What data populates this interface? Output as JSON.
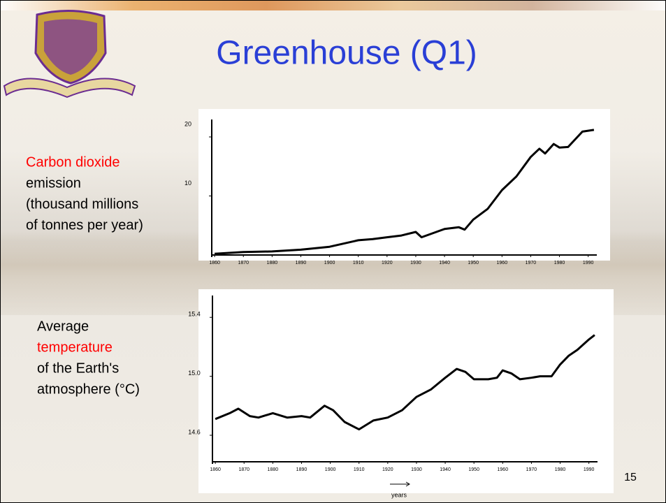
{
  "title": "Greenhouse (Q1)",
  "page_number": "15",
  "chart_data": [
    {
      "type": "line",
      "ylabel_lines": [
        "Carbon dioxide",
        "emission",
        "(thousand millions",
        "of tonnes per year)"
      ],
      "ylabel_colors": [
        "#ff0000",
        "#000000",
        "#000000",
        "#000000"
      ],
      "x": [
        1860,
        1870,
        1880,
        1890,
        1900,
        1910,
        1915,
        1920,
        1925,
        1930,
        1932,
        1940,
        1945,
        1947,
        1950,
        1955,
        1960,
        1965,
        1970,
        1973,
        1975,
        1978,
        1980,
        1983,
        1988,
        1992
      ],
      "values": [
        0.2,
        0.5,
        0.6,
        0.9,
        1.4,
        2.5,
        2.7,
        3.0,
        3.3,
        3.9,
        3.0,
        4.4,
        4.7,
        4.3,
        6.0,
        7.8,
        11.0,
        13.3,
        16.6,
        18.0,
        17.2,
        18.8,
        18.2,
        18.3,
        20.9,
        21.2
      ],
      "color": "#000000",
      "xlim": [
        1859,
        1993
      ],
      "ylim": [
        0,
        22
      ],
      "xticks": [
        1860,
        1870,
        1880,
        1890,
        1900,
        1910,
        1920,
        1930,
        1940,
        1950,
        1960,
        1970,
        1980,
        1990
      ],
      "yticks": [
        10,
        20
      ]
    },
    {
      "type": "line",
      "ylabel_lines": [
        "Average",
        "temperature",
        "of the Earth's",
        "atmosphere (°C)"
      ],
      "ylabel_colors": [
        "#000000",
        "#ff0000",
        "#000000",
        "#000000"
      ],
      "xlabel": "years",
      "x": [
        1860,
        1865,
        1868,
        1872,
        1875,
        1880,
        1885,
        1890,
        1893,
        1898,
        1901,
        1905,
        1910,
        1915,
        1920,
        1925,
        1930,
        1935,
        1940,
        1944,
        1947,
        1950,
        1955,
        1958,
        1960,
        1963,
        1966,
        1970,
        1973,
        1977,
        1980,
        1983,
        1986,
        1990,
        1992
      ],
      "values": [
        14.71,
        14.75,
        14.78,
        14.73,
        14.72,
        14.75,
        14.72,
        14.73,
        14.72,
        14.8,
        14.77,
        14.69,
        14.64,
        14.7,
        14.72,
        14.77,
        14.86,
        14.91,
        14.99,
        15.05,
        15.03,
        14.98,
        14.98,
        14.99,
        15.04,
        15.02,
        14.98,
        14.99,
        15.0,
        15.0,
        15.08,
        15.14,
        15.18,
        15.25,
        15.28
      ],
      "color": "#000000",
      "xlim": [
        1859,
        1993
      ],
      "ylim": [
        14.42,
        15.55
      ],
      "xticks": [
        1860,
        1870,
        1880,
        1890,
        1900,
        1910,
        1920,
        1930,
        1940,
        1950,
        1960,
        1970,
        1980,
        1990
      ],
      "yticks": [
        {
          "value": 14.6,
          "label": "14.6"
        },
        {
          "value": 15.0,
          "label": "15.0"
        },
        {
          "value": 15.4,
          "label": "15.4"
        }
      ]
    }
  ]
}
